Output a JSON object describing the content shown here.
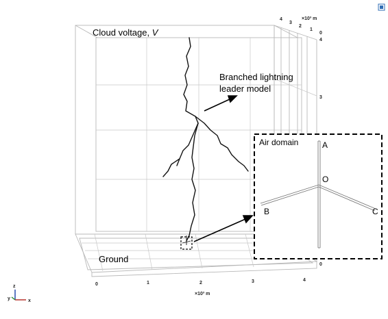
{
  "labels": {
    "cloud_voltage": "Cloud voltage, ",
    "cloud_voltage_symbol": "V",
    "branched_model_line1": "Branched lightning",
    "branched_model_line2": "leader model",
    "ground": "Ground",
    "air_domain": "Air domain",
    "point_a": "A",
    "point_o": "O",
    "point_b": "B",
    "point_c": "C"
  },
  "axes": {
    "x_ticks": [
      "0",
      "1",
      "2",
      "3",
      "4"
    ],
    "x_unit": "×10³ m",
    "y_ticks": [
      "4",
      "3",
      "2",
      "1",
      "0"
    ],
    "y_unit": "×10³ m",
    "z_ticks": [
      "4",
      "3",
      "0"
    ],
    "triad": {
      "z": "z",
      "y": "y",
      "x": "x"
    }
  },
  "icons": {
    "corner": "view-toggle-icon"
  },
  "colors": {
    "grid": "#b8b8b8",
    "leader": "#111111",
    "inset_border": "#000000",
    "corner_icon": "#2f6db5"
  }
}
